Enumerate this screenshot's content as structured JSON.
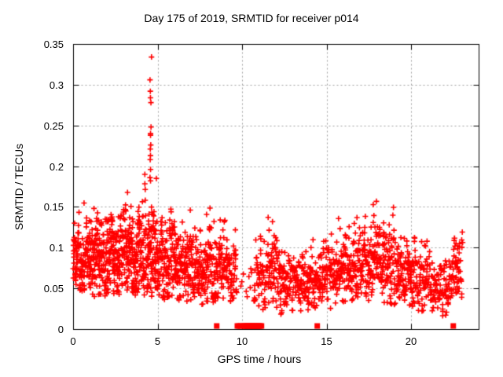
{
  "chart_data": {
    "type": "scatter",
    "title": "Day 175 of 2019, SRMTID for receiver p014",
    "xlabel": "GPS time / hours",
    "ylabel": "SRMTID / TECUs",
    "xlim": [
      0,
      24
    ],
    "ylim": [
      0,
      0.35
    ],
    "xticks": [
      0,
      5,
      10,
      15,
      20
    ],
    "xtick_labels": [
      "0",
      "5",
      "10",
      "15",
      "20"
    ],
    "yticks": [
      0,
      0.05,
      0.1,
      0.15,
      0.2,
      0.25,
      0.3,
      0.35
    ],
    "ytick_labels": [
      "0",
      "0.05",
      "0.1",
      "0.15",
      "0.2",
      "0.25",
      "0.3",
      "0.35"
    ],
    "grid": true,
    "grid_color": "#a0a0a0",
    "border_color": "#000000",
    "background": "#ffffff",
    "legend": "none",
    "marker": "plus",
    "marker_color": "#ff0000",
    "marker_size": 7,
    "seed": 20190175,
    "spike": {
      "x": 4.6,
      "x_jitter": 0.1,
      "values": [
        0.334,
        0.306,
        0.292,
        0.284,
        0.278,
        0.248,
        0.24,
        0.238,
        0.226,
        0.221,
        0.213,
        0.208,
        0.196,
        0.186,
        0.182
      ]
    },
    "zero_markers": {
      "marker": "filled-square",
      "color": "#ff0000",
      "y": 0,
      "x": [
        8.5,
        9.72,
        9.82,
        9.92,
        10.1,
        10.15,
        10.2,
        10.25,
        10.3,
        10.35,
        10.4,
        10.45,
        10.5,
        10.55,
        10.6,
        10.65,
        10.7,
        10.75,
        10.8,
        10.85,
        10.9,
        10.95,
        11.0,
        11.08,
        11.15,
        14.45,
        22.5
      ]
    },
    "density_profile": [
      {
        "x0": 0.0,
        "x1": 1.0,
        "n": 135,
        "mean": 0.088,
        "sd": 0.021,
        "min": 0.045,
        "max": 0.155
      },
      {
        "x0": 1.0,
        "x1": 2.0,
        "n": 135,
        "mean": 0.087,
        "sd": 0.024,
        "min": 0.04,
        "max": 0.165
      },
      {
        "x0": 2.0,
        "x1": 3.0,
        "n": 135,
        "mean": 0.09,
        "sd": 0.026,
        "min": 0.04,
        "max": 0.175
      },
      {
        "x0": 3.0,
        "x1": 4.0,
        "n": 135,
        "mean": 0.092,
        "sd": 0.028,
        "min": 0.038,
        "max": 0.188
      },
      {
        "x0": 4.0,
        "x1": 5.0,
        "n": 135,
        "mean": 0.096,
        "sd": 0.03,
        "min": 0.04,
        "max": 0.195
      },
      {
        "x0": 5.0,
        "x1": 6.0,
        "n": 115,
        "mean": 0.082,
        "sd": 0.026,
        "min": 0.035,
        "max": 0.158
      },
      {
        "x0": 6.0,
        "x1": 7.0,
        "n": 115,
        "mean": 0.077,
        "sd": 0.023,
        "min": 0.032,
        "max": 0.15
      },
      {
        "x0": 7.0,
        "x1": 8.0,
        "n": 115,
        "mean": 0.075,
        "sd": 0.022,
        "min": 0.03,
        "max": 0.142
      },
      {
        "x0": 8.0,
        "x1": 9.0,
        "n": 105,
        "mean": 0.08,
        "sd": 0.026,
        "min": 0.03,
        "max": 0.168
      },
      {
        "x0": 9.0,
        "x1": 9.7,
        "n": 60,
        "mean": 0.07,
        "sd": 0.02,
        "min": 0.03,
        "max": 0.135
      },
      {
        "x0": 9.7,
        "x1": 10.7,
        "n": 5,
        "mean": 0.055,
        "sd": 0.015,
        "min": 0.035,
        "max": 0.08
      },
      {
        "x0": 10.7,
        "x1": 11.6,
        "n": 70,
        "mean": 0.063,
        "sd": 0.024,
        "min": 0.02,
        "max": 0.145
      },
      {
        "x0": 11.6,
        "x1": 12.5,
        "n": 85,
        "mean": 0.065,
        "sd": 0.025,
        "min": 0.015,
        "max": 0.155
      },
      {
        "x0": 12.5,
        "x1": 13.5,
        "n": 85,
        "mean": 0.055,
        "sd": 0.018,
        "min": 0.012,
        "max": 0.122
      },
      {
        "x0": 13.5,
        "x1": 14.5,
        "n": 80,
        "mean": 0.06,
        "sd": 0.02,
        "min": 0.02,
        "max": 0.132
      },
      {
        "x0": 14.5,
        "x1": 15.5,
        "n": 90,
        "mean": 0.068,
        "sd": 0.023,
        "min": 0.025,
        "max": 0.14
      },
      {
        "x0": 15.5,
        "x1": 16.5,
        "n": 95,
        "mean": 0.074,
        "sd": 0.024,
        "min": 0.03,
        "max": 0.148
      },
      {
        "x0": 16.5,
        "x1": 17.5,
        "n": 100,
        "mean": 0.08,
        "sd": 0.026,
        "min": 0.03,
        "max": 0.152
      },
      {
        "x0": 17.5,
        "x1": 18.5,
        "n": 100,
        "mean": 0.085,
        "sd": 0.028,
        "min": 0.032,
        "max": 0.17
      },
      {
        "x0": 18.5,
        "x1": 19.5,
        "n": 95,
        "mean": 0.078,
        "sd": 0.026,
        "min": 0.03,
        "max": 0.158
      },
      {
        "x0": 19.5,
        "x1": 20.3,
        "n": 75,
        "mean": 0.066,
        "sd": 0.023,
        "min": 0.028,
        "max": 0.132
      },
      {
        "x0": 20.3,
        "x1": 21.5,
        "n": 95,
        "mean": 0.058,
        "sd": 0.019,
        "min": 0.022,
        "max": 0.115
      },
      {
        "x0": 21.5,
        "x1": 22.5,
        "n": 80,
        "mean": 0.054,
        "sd": 0.018,
        "min": 0.015,
        "max": 0.11
      },
      {
        "x0": 22.5,
        "x1": 23.05,
        "n": 48,
        "mean": 0.074,
        "sd": 0.025,
        "min": 0.035,
        "max": 0.12
      }
    ]
  }
}
